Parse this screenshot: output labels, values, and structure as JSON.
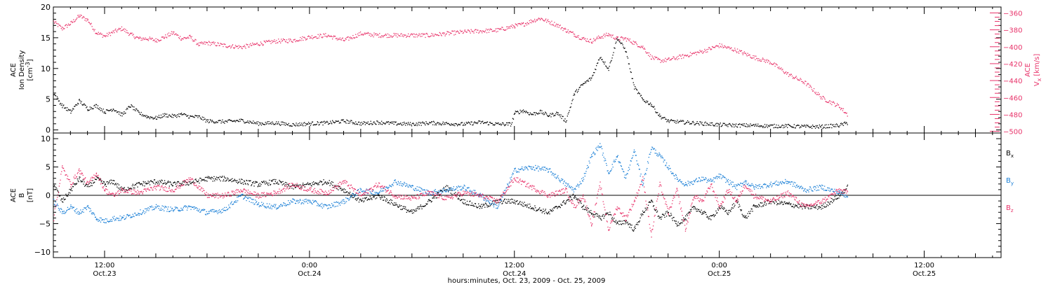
{
  "colors": {
    "black": "#000000",
    "pink": "#e8336a",
    "blue": "#1a7fd6"
  },
  "x_axis": {
    "label": "hours:minutes, Oct. 23, 2009 - Oct. 25, 2009",
    "ticks": [
      {
        "time": "12:00",
        "date": "Oct.23",
        "hours": 12
      },
      {
        "time": "0:00",
        "date": "Oct.24",
        "hours": 24
      },
      {
        "time": "12:00",
        "date": "Oct.24",
        "hours": 36
      },
      {
        "time": "0:00",
        "date": "Oct.25",
        "hours": 48
      },
      {
        "time": "12:00",
        "date": "Oct.25",
        "hours": 60
      }
    ]
  },
  "chart_data": [
    {
      "type": "scatter",
      "title": "",
      "xlabel": "hours:minutes, Oct. 23, 2009 - Oct. 25, 2009",
      "xlim": [
        9,
        64.5
      ],
      "ylabel": "ACE Ion Density [cm-3]",
      "ylabel_lines": [
        "ACE",
        "Ion Density",
        "[cm",
        "-3",
        "]"
      ],
      "ylim": [
        -0.5,
        20
      ],
      "yticks": [
        0,
        5,
        10,
        15,
        20
      ],
      "y2label": "ACE Vx [km/s]",
      "y2label_lines": [
        "ACE",
        "V",
        "x",
        "[km/s]"
      ],
      "y2lim": [
        -502,
        -353
      ],
      "y2ticks": [
        -360,
        -380,
        -400,
        -420,
        -440,
        -460,
        -480,
        -500
      ],
      "series": [
        {
          "axis": "left",
          "color": "#000000",
          "x": [
            9,
            9.5,
            10,
            10.5,
            11,
            11.5,
            12,
            12.5,
            13,
            13.5,
            14,
            14.5,
            15,
            15.5,
            16,
            16.5,
            17,
            17.5,
            18,
            19,
            20,
            21,
            22,
            23,
            24,
            25,
            26,
            27,
            28,
            29,
            30,
            31,
            32,
            33,
            34,
            35,
            35.8,
            36,
            36.5,
            37,
            37.5,
            38,
            38.5,
            39,
            39.5,
            40,
            40.5,
            41,
            41.5,
            42,
            42.5,
            43,
            43.5,
            44,
            44.5,
            45,
            46,
            47,
            48,
            49,
            50,
            51,
            52,
            53,
            54,
            55,
            55.5
          ],
          "y": [
            6,
            4,
            3,
            4.8,
            3.5,
            4,
            3,
            3.5,
            2.5,
            4,
            2.8,
            2.2,
            2,
            2.5,
            2.3,
            2.6,
            2.2,
            2.2,
            1.5,
            1.4,
            1.6,
            1.1,
            1.2,
            0.9,
            1.1,
            1.2,
            1.5,
            1.1,
            1.3,
            1.1,
            1.0,
            1.2,
            1.1,
            1.0,
            1.3,
            1.0,
            1.0,
            2.8,
            3.2,
            2.6,
            3.0,
            2.4,
            2.8,
            1.5,
            6,
            7.5,
            8.5,
            12,
            10,
            15,
            13,
            7,
            5,
            4.2,
            2.3,
            1.5,
            1.3,
            1.1,
            0.9,
            0.8,
            0.8,
            0.7,
            0.7,
            0.6,
            0.6,
            0.8,
            1.2
          ]
        },
        {
          "axis": "right",
          "color": "#e8336a",
          "x": [
            9,
            9.5,
            10,
            10.5,
            11,
            11.5,
            12,
            12.5,
            13,
            13.5,
            14,
            14.5,
            15,
            15.5,
            16,
            16.5,
            17,
            17.5,
            18,
            19,
            20,
            21,
            22,
            23,
            24,
            25,
            26,
            27,
            28,
            29,
            30,
            31,
            32,
            33,
            34,
            35,
            35.8,
            36,
            36.5,
            37,
            37.5,
            38,
            38.5,
            39,
            39.5,
            40,
            40.5,
            41,
            41.5,
            42,
            42.5,
            43,
            43.5,
            44,
            44.5,
            45,
            46,
            47,
            48,
            49,
            50,
            51,
            52,
            53,
            54,
            55,
            55.5
          ],
          "y": [
            -370,
            -378,
            -372,
            -363,
            -368,
            -383,
            -387,
            -382,
            -378,
            -385,
            -390,
            -390,
            -392,
            -388,
            -383,
            -390,
            -388,
            -397,
            -395,
            -398,
            -400,
            -396,
            -393,
            -392,
            -388,
            -386,
            -392,
            -384,
            -386,
            -386,
            -386,
            -386,
            -384,
            -382,
            -381,
            -380,
            -376,
            -375,
            -373,
            -369,
            -366,
            -370,
            -374,
            -380,
            -385,
            -390,
            -393,
            -388,
            -385,
            -390,
            -390,
            -395,
            -400,
            -412,
            -416,
            -415,
            -410,
            -405,
            -398,
            -404,
            -412,
            -418,
            -432,
            -442,
            -460,
            -470,
            -480
          ]
        }
      ]
    },
    {
      "type": "scatter",
      "title": "",
      "xlabel": "hours:minutes, Oct. 23, 2009 - Oct. 25, 2009",
      "xlim": [
        9,
        64.5
      ],
      "ylabel": "ACE B [nT]",
      "ylabel_lines": [
        "ACE",
        "B",
        "[nT]"
      ],
      "ylim": [
        -11,
        11
      ],
      "yticks": [
        -10,
        -5,
        0,
        5,
        10
      ],
      "zero_line": true,
      "legend": "right",
      "series": [
        {
          "name": "Bx",
          "name_main": "B",
          "name_sub": "x",
          "color": "#000000",
          "x": [
            9,
            9.5,
            10,
            10.5,
            11,
            11.5,
            12,
            12.5,
            13,
            14,
            15,
            16,
            17,
            18,
            19,
            20,
            21,
            22,
            23,
            24,
            25,
            26,
            27,
            28,
            29,
            30,
            31,
            32,
            33,
            34,
            35,
            36,
            37,
            38,
            39,
            39.5,
            40,
            40.5,
            41,
            41.5,
            42,
            42.5,
            43,
            43.5,
            44,
            44.5,
            45,
            45.5,
            46,
            46.5,
            47,
            47.5,
            48,
            48.5,
            49,
            49.5,
            50,
            51,
            52,
            53,
            54,
            55,
            55.5
          ],
          "y": [
            2,
            -1,
            1,
            3,
            1.5,
            3,
            2,
            2.5,
            1,
            2,
            2.5,
            2,
            2.3,
            3,
            3,
            2.5,
            2,
            2.5,
            1.5,
            2,
            2.5,
            1,
            -1,
            0,
            -1.5,
            -3,
            -1,
            1.5,
            -1,
            -2,
            -1,
            -1,
            -2,
            -3,
            -1,
            0,
            -2,
            -3,
            -4,
            -3,
            -5,
            -4.5,
            -6,
            -3,
            -1,
            -4,
            -3,
            -5,
            -4,
            -2,
            -3,
            -4,
            -2,
            -3,
            -1,
            -4,
            -2,
            -1,
            -1.5,
            -2,
            -2,
            0,
            1.5
          ]
        },
        {
          "name": "By",
          "name_main": "B",
          "name_sub": "y",
          "color": "#1a7fd6",
          "x": [
            9,
            9.5,
            10,
            10.5,
            11,
            11.5,
            12,
            12.5,
            13,
            14,
            15,
            16,
            17,
            18,
            19,
            20,
            21,
            22,
            23,
            24,
            25,
            26,
            27,
            28,
            29,
            30,
            31,
            32,
            33,
            34,
            35,
            36,
            37,
            38,
            39,
            39.5,
            40,
            40.5,
            41,
            41.5,
            42,
            42.5,
            43,
            43.5,
            44,
            44.5,
            45,
            45.5,
            46,
            46.5,
            47,
            47.5,
            48,
            48.5,
            49,
            49.5,
            50,
            51,
            52,
            53,
            54,
            55,
            55.5
          ],
          "y": [
            -1,
            -3,
            -2,
            -3,
            -2,
            -4,
            -4.5,
            -4,
            -4,
            -3,
            -2,
            -2.5,
            -2,
            -3,
            -2.5,
            0,
            -1.5,
            -2,
            -1,
            -1,
            -2,
            -1,
            1,
            0.5,
            2.5,
            1.5,
            0.5,
            1,
            1.5,
            0,
            -2,
            4.5,
            5,
            4.5,
            2,
            1,
            3,
            7,
            9,
            4,
            7,
            3,
            8,
            2,
            8.5,
            7,
            5,
            3,
            2,
            2.5,
            3,
            2.5,
            3.5,
            2.5,
            1.5,
            2.5,
            1.5,
            2,
            2.5,
            1,
            1.5,
            0.5,
            0
          ]
        },
        {
          "name": "Bz",
          "name_main": "B",
          "name_sub": "z",
          "color": "#e8336a",
          "x": [
            9,
            9.5,
            10,
            10.5,
            11,
            11.5,
            12,
            12.5,
            13,
            14,
            15,
            16,
            17,
            18,
            19,
            20,
            21,
            22,
            23,
            24,
            25,
            26,
            27,
            28,
            29,
            30,
            31,
            32,
            33,
            34,
            35,
            36,
            37,
            38,
            39,
            39.5,
            40,
            40.5,
            41,
            41.5,
            42,
            42.5,
            43,
            43.5,
            44,
            44.5,
            45,
            45.5,
            46,
            46.5,
            47,
            47.5,
            48,
            48.5,
            49,
            49.5,
            50,
            51,
            52,
            53,
            54,
            55,
            55.5
          ],
          "y": [
            -4,
            5,
            2,
            4.5,
            2,
            4,
            1,
            0,
            1,
            0.5,
            1.5,
            1,
            3,
            0,
            0,
            1,
            0,
            0.5,
            2,
            1,
            0.5,
            2.5,
            0,
            2,
            0,
            -0.5,
            0.5,
            -0.5,
            0.5,
            0,
            -1,
            3,
            1.5,
            0,
            1,
            -2,
            0,
            -5,
            2,
            -6,
            -2,
            -4,
            -1,
            3,
            -7,
            2,
            -3,
            1,
            -6,
            0,
            -1,
            2,
            -2,
            1,
            -1,
            2,
            0,
            -1,
            0.5,
            -2,
            -1,
            1,
            0.5
          ]
        }
      ]
    }
  ]
}
